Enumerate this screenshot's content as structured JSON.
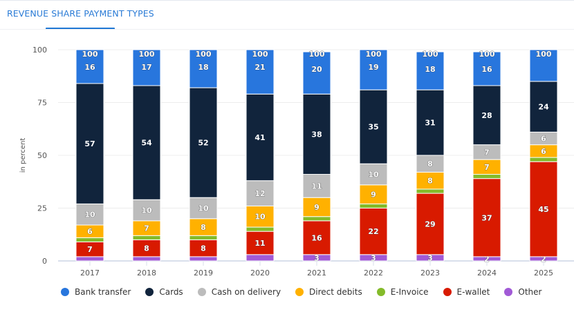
{
  "header": {
    "tab_title": "REVENUE SHARE PAYMENT TYPES"
  },
  "chart_data": {
    "type": "bar",
    "stacked": true,
    "title": "REVENUE SHARE PAYMENT TYPES",
    "xlabel": "",
    "ylabel": "in percent",
    "ylim": [
      0,
      100
    ],
    "yticks": [
      0,
      25,
      50,
      75,
      100
    ],
    "grid": true,
    "legend_position": "bottom",
    "categories": [
      "2017",
      "2018",
      "2019",
      "2020",
      "2021",
      "2022",
      "2023",
      "2024",
      "2025"
    ],
    "totals": [
      100,
      100,
      100,
      100,
      100,
      100,
      100,
      100,
      100
    ],
    "series": [
      {
        "name": "Other",
        "color": "#a15ad6",
        "values": [
          2,
          2,
          2,
          3,
          3,
          3,
          3,
          2,
          2
        ],
        "labels_shown": [
          false,
          false,
          false,
          false,
          true,
          true,
          true,
          true,
          true
        ]
      },
      {
        "name": "E-wallet",
        "color": "#d81a00",
        "values": [
          7,
          8,
          8,
          11,
          16,
          22,
          29,
          37,
          45
        ],
        "labels_shown": [
          true,
          true,
          true,
          true,
          true,
          true,
          true,
          true,
          true
        ]
      },
      {
        "name": "E-Invoice",
        "color": "#84bb2a",
        "values": [
          2,
          2,
          2,
          2,
          2,
          2,
          2,
          2,
          2
        ],
        "labels_shown": [
          false,
          false,
          false,
          false,
          false,
          false,
          false,
          false,
          false
        ]
      },
      {
        "name": "Direct debits",
        "color": "#ffb100",
        "values": [
          6,
          7,
          8,
          10,
          9,
          9,
          8,
          7,
          6
        ],
        "labels_shown": [
          true,
          true,
          true,
          true,
          true,
          true,
          true,
          true,
          true
        ]
      },
      {
        "name": "Cash on delivery",
        "color": "#bcbcbc",
        "values": [
          10,
          10,
          10,
          12,
          11,
          10,
          8,
          7,
          6
        ],
        "labels_shown": [
          true,
          true,
          true,
          true,
          true,
          true,
          true,
          true,
          true
        ]
      },
      {
        "name": "Cards",
        "color": "#11243c",
        "values": [
          57,
          54,
          52,
          41,
          38,
          35,
          31,
          28,
          24
        ],
        "labels_shown": [
          true,
          true,
          true,
          true,
          true,
          true,
          true,
          true,
          true
        ]
      },
      {
        "name": "Bank transfer",
        "color": "#2876dd",
        "values": [
          16,
          17,
          18,
          21,
          20,
          19,
          18,
          16,
          15
        ],
        "labels_shown": [
          true,
          true,
          true,
          true,
          true,
          true,
          true,
          true,
          false
        ]
      }
    ]
  },
  "legend": [
    {
      "label": "Bank transfer",
      "color": "#2876dd"
    },
    {
      "label": "Cards",
      "color": "#11243c"
    },
    {
      "label": "Cash on delivery",
      "color": "#bcbcbc"
    },
    {
      "label": "Direct debits",
      "color": "#ffb100"
    },
    {
      "label": "E-Invoice",
      "color": "#84bb2a"
    },
    {
      "label": "E-wallet",
      "color": "#d81a00"
    },
    {
      "label": "Other",
      "color": "#a15ad6"
    }
  ]
}
